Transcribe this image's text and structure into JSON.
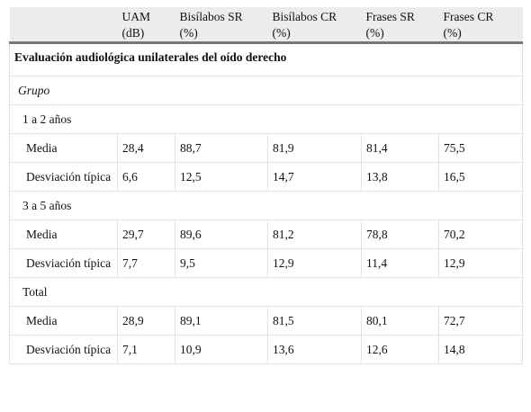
{
  "table": {
    "columns": [
      {
        "name": "UAM",
        "unit": "(dB)"
      },
      {
        "name": "Bisílabos SR",
        "unit": "(%)"
      },
      {
        "name": "Bisílabos CR",
        "unit": "(%)"
      },
      {
        "name": "Frases SR",
        "unit": "(%)"
      },
      {
        "name": "Frases CR",
        "unit": "(%)"
      }
    ],
    "section": "Evaluación audiológica unilaterales del oído derecho",
    "subheading": "Grupo",
    "groups": [
      {
        "label": "1 a 2 años",
        "rows": [
          {
            "label": "Media",
            "cells": [
              "28,4",
              "88,7",
              "81,9",
              "81,4",
              "75,5"
            ]
          },
          {
            "label": "Desviación típica",
            "cells": [
              "6,6",
              "12,5",
              "14,7",
              "13,8",
              "16,5"
            ]
          }
        ]
      },
      {
        "label": "3 a 5 años",
        "rows": [
          {
            "label": "Media",
            "cells": [
              "29,7",
              "89,6",
              "81,2",
              "78,8",
              "70,2"
            ]
          },
          {
            "label": "Desviación típica",
            "cells": [
              "7,7",
              "9,5",
              "12,9",
              "11,4",
              "12,9"
            ]
          }
        ]
      },
      {
        "label": "Total",
        "rows": [
          {
            "label": "Media",
            "cells": [
              "28,9",
              "89,1",
              "81,5",
              "80,1",
              "72,7"
            ]
          },
          {
            "label": "Desviación típica",
            "cells": [
              "7,1",
              "10,9",
              "13,6",
              "12,6",
              "14,8"
            ]
          }
        ]
      }
    ]
  }
}
